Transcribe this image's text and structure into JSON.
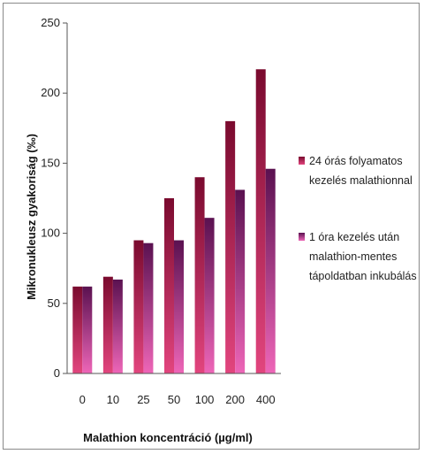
{
  "chart_data": {
    "type": "bar",
    "title": "",
    "xlabel": "Malathion koncentráció (µg/ml)",
    "ylabel": "Mikronukleusz gyakoriság (‰)",
    "categories": [
      "0",
      "10",
      "25",
      "50",
      "100",
      "200",
      "400"
    ],
    "ylim": [
      0,
      250
    ],
    "yticks": [
      0,
      50,
      100,
      150,
      200,
      250
    ],
    "grid": false,
    "legend_position": "right",
    "series": [
      {
        "name": [
          "24 órás folyamatos",
          "kezelés malathionnal"
        ],
        "values": [
          62,
          69,
          95,
          125,
          140,
          180,
          217
        ],
        "color_top": "#7a0a2e",
        "color_bottom": "#e2457e"
      },
      {
        "name": [
          "1 óra kezelés után",
          "malathion-mentes",
          "tápoldatban inkubálás"
        ],
        "values": [
          62,
          67,
          93,
          95,
          111,
          131,
          146
        ],
        "color_top": "#5a1150",
        "color_bottom": "#ee66b8"
      }
    ]
  }
}
